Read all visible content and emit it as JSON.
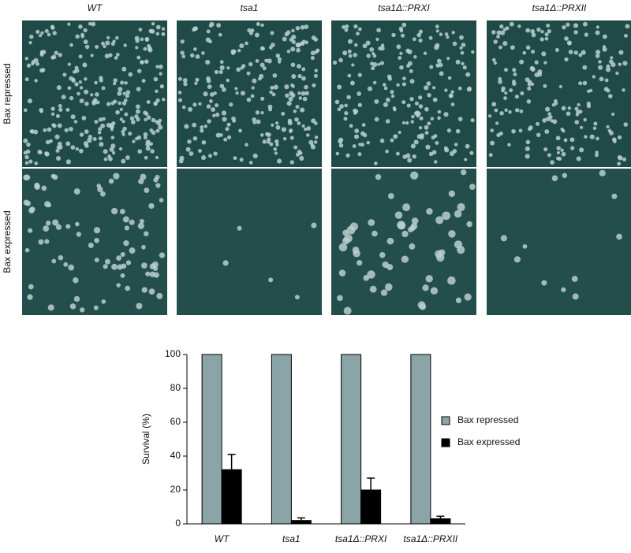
{
  "panels": {
    "columns": [
      "WT",
      "tsa1",
      "tsa1Δ::PRXI",
      "tsa1Δ::PRXII"
    ],
    "rows": [
      "Bax repressed",
      "Bax expressed"
    ]
  },
  "chart_data": {
    "type": "bar",
    "categories": [
      "WT",
      "tsa1",
      "tsa1Δ::PRXI",
      "tsa1Δ::PRXII"
    ],
    "y_label": "Survival (%)",
    "series": [
      {
        "name": "Bax repressed",
        "color": "#8aa4a8",
        "values": [
          100,
          100,
          100,
          100
        ]
      },
      {
        "name": "Bax expressed",
        "color": "#000000",
        "values": [
          32,
          2,
          20,
          3
        ],
        "errors": [
          9,
          1.5,
          7,
          1.5
        ]
      }
    ],
    "ylim": [
      0,
      100
    ],
    "yticks": [
      0,
      20,
      40,
      60,
      80,
      100
    ],
    "legend": "right"
  }
}
